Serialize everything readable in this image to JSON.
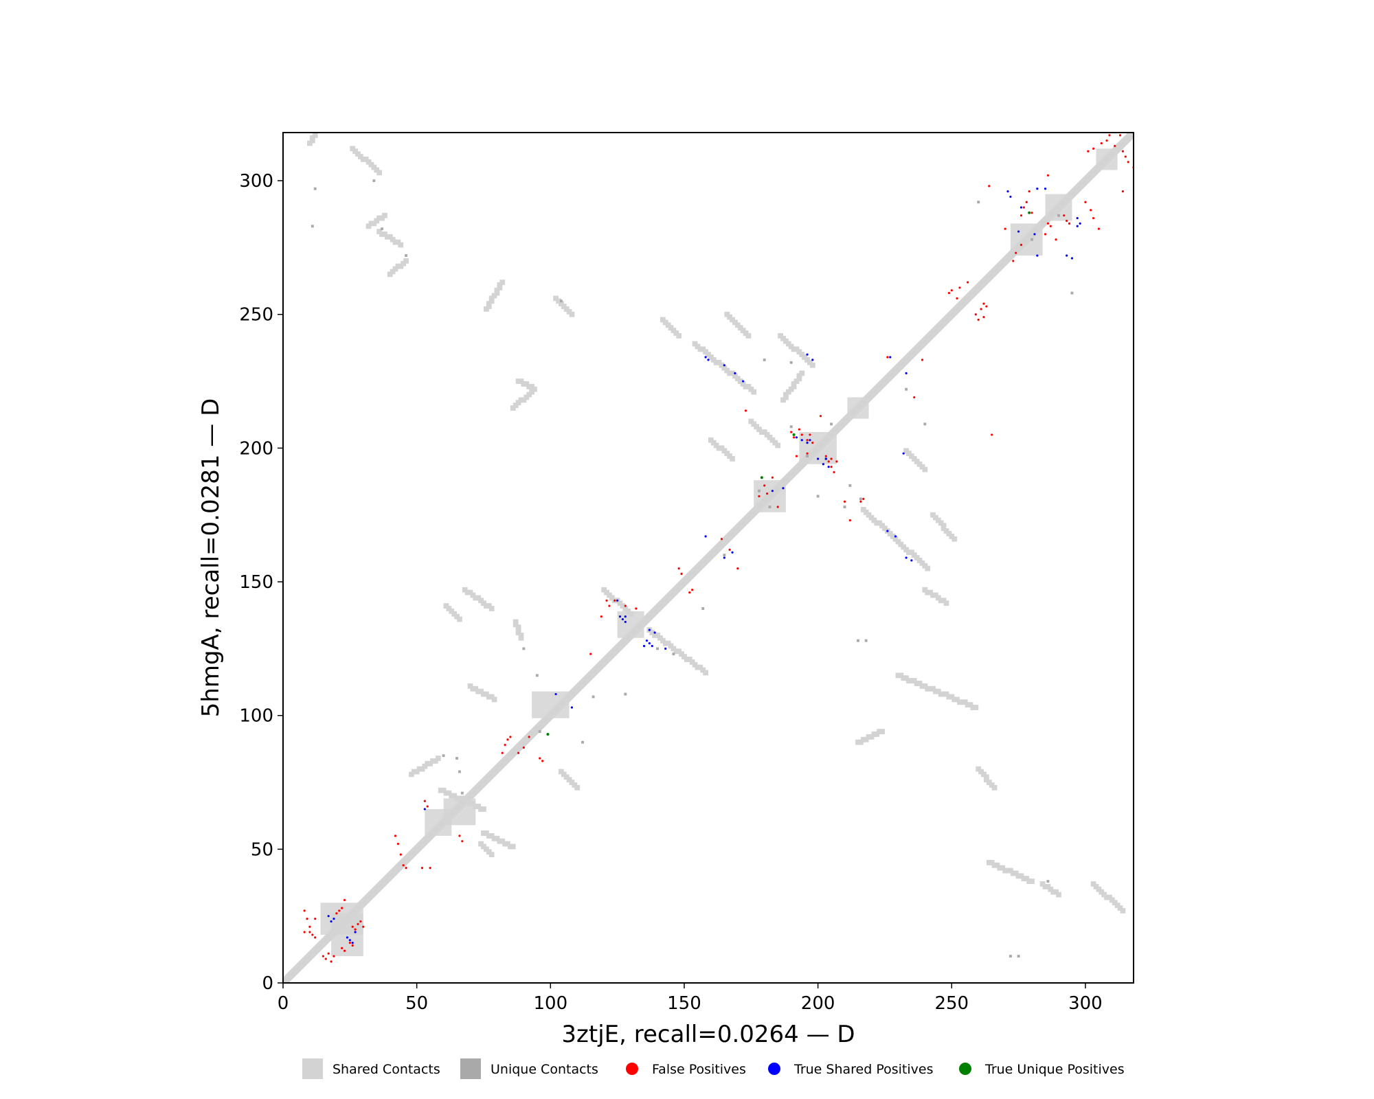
{
  "colors": {
    "shared": "#d3d3d3",
    "unique": "#a9a9a9",
    "false_pos": "#ff0000",
    "true_shared": "#0000ff",
    "true_unique": "#008000",
    "axis": "#000000"
  },
  "chart_data": {
    "type": "scatter",
    "title": "",
    "xlabel": "3ztjE, recall=0.0264 — D",
    "ylabel": "5hmgA, recall=0.0281 — D",
    "xlim": [
      0,
      318
    ],
    "ylim": [
      0,
      318
    ],
    "xticks": [
      0,
      50,
      100,
      150,
      200,
      250,
      300
    ],
    "yticks": [
      0,
      50,
      100,
      150,
      200,
      250,
      300
    ],
    "grid": false,
    "legend_position": "bottom",
    "legend": [
      {
        "key": "shared",
        "label": "Shared Contacts",
        "marker": "square"
      },
      {
        "key": "unique",
        "label": "Unique Contacts",
        "marker": "square"
      },
      {
        "key": "false_pos",
        "label": "False Positives",
        "marker": "circle"
      },
      {
        "key": "true_shared",
        "label": "True Shared Positives",
        "marker": "circle"
      },
      {
        "key": "true_unique",
        "label": "True Unique Positives",
        "marker": "circle"
      }
    ],
    "contact_diagonal": {
      "from": 0,
      "to": 318,
      "width": 3
    },
    "shared_contacts": [
      {
        "segment": [
          [
            12,
            317
          ],
          [
            10,
            314
          ]
        ]
      },
      {
        "segment": [
          [
            26,
            312
          ],
          [
            36,
            303
          ]
        ]
      },
      {
        "segment": [
          [
            32,
            283
          ],
          [
            38,
            287
          ]
        ]
      },
      {
        "segment": [
          [
            36,
            281
          ],
          [
            44,
            276
          ]
        ]
      },
      {
        "segment": [
          [
            40,
            265
          ],
          [
            46,
            270
          ]
        ]
      },
      {
        "segment": [
          [
            76,
            252
          ],
          [
            82,
            262
          ]
        ]
      },
      {
        "segment": [
          [
            102,
            256
          ],
          [
            108,
            250
          ]
        ]
      },
      {
        "segment": [
          [
            142,
            248
          ],
          [
            148,
            242
          ]
        ]
      },
      {
        "segment": [
          [
            166,
            250
          ],
          [
            174,
            242
          ]
        ]
      },
      {
        "segment": [
          [
            154,
            239
          ],
          [
            176,
            221
          ]
        ]
      },
      {
        "segment": [
          [
            186,
            242
          ],
          [
            198,
            231
          ]
        ]
      },
      {
        "segment": [
          [
            88,
            225
          ],
          [
            94,
            222
          ]
        ]
      },
      {
        "segment": [
          [
            86,
            215
          ],
          [
            93,
            221
          ]
        ]
      },
      {
        "segment": [
          [
            175,
            210
          ],
          [
            185,
            201
          ]
        ]
      },
      {
        "segment": [
          [
            233,
            199
          ],
          [
            240,
            192
          ]
        ]
      },
      {
        "segment": [
          [
            217,
            177
          ],
          [
            241,
            155
          ]
        ]
      },
      {
        "segment": [
          [
            243,
            175
          ],
          [
            251,
            166
          ]
        ]
      },
      {
        "segment": [
          [
            240,
            147
          ],
          [
            248,
            142
          ]
        ]
      },
      {
        "segment": [
          [
            120,
            147
          ],
          [
            130,
            138
          ]
        ]
      },
      {
        "segment": [
          [
            61,
            141
          ],
          [
            66,
            136
          ]
        ]
      },
      {
        "segment": [
          [
            87,
            135
          ],
          [
            89,
            129
          ]
        ]
      },
      {
        "segment": [
          [
            137,
            132
          ],
          [
            158,
            116
          ]
        ]
      },
      {
        "segment": [
          [
            230,
            115
          ],
          [
            259,
            103
          ]
        ]
      },
      {
        "segment": [
          [
            70,
            111
          ],
          [
            79,
            106
          ]
        ]
      },
      {
        "segment": [
          [
            215,
            90
          ],
          [
            224,
            94
          ]
        ]
      },
      {
        "segment": [
          [
            48,
            78
          ],
          [
            58,
            84
          ]
        ]
      },
      {
        "segment": [
          [
            104,
            79
          ],
          [
            110,
            73
          ]
        ]
      },
      {
        "segment": [
          [
            59,
            72
          ],
          [
            75,
            65
          ]
        ]
      },
      {
        "segment": [
          [
            75,
            56
          ],
          [
            86,
            51
          ]
        ]
      },
      {
        "segment": [
          [
            74,
            52
          ],
          [
            78,
            48
          ]
        ]
      },
      {
        "segment": [
          [
            260,
            80
          ],
          [
            266,
            73
          ]
        ]
      },
      {
        "segment": [
          [
            264,
            45
          ],
          [
            280,
            38
          ]
        ]
      },
      {
        "segment": [
          [
            284,
            37
          ],
          [
            290,
            33
          ]
        ]
      },
      {
        "segment": [
          [
            303,
            37
          ],
          [
            314,
            27
          ]
        ]
      },
      {
        "segment": [
          [
            68,
            147
          ],
          [
            78,
            140
          ]
        ]
      },
      {
        "segment": [
          [
            160,
            203
          ],
          [
            168,
            196
          ]
        ]
      },
      {
        "segment": [
          [
            187,
            218
          ],
          [
            194,
            228
          ]
        ]
      }
    ],
    "shared_blobs": [
      [
        22,
        24,
        16,
        12
      ],
      [
        24,
        18,
        12,
        16
      ],
      [
        58,
        60,
        10,
        10
      ],
      [
        66,
        64,
        12,
        10
      ],
      [
        100,
        104,
        14,
        10
      ],
      [
        130,
        134,
        10,
        10
      ],
      [
        182,
        182,
        12,
        12
      ],
      [
        200,
        200,
        14,
        12
      ],
      [
        215,
        215,
        8,
        8
      ],
      [
        278,
        278,
        12,
        12
      ],
      [
        290,
        290,
        10,
        10
      ],
      [
        308,
        308,
        8,
        8
      ]
    ],
    "unique_contacts": [
      [
        34,
        300
      ],
      [
        37,
        282
      ],
      [
        46,
        272
      ],
      [
        104,
        255
      ],
      [
        180,
        233
      ],
      [
        190,
        232
      ],
      [
        210,
        178
      ],
      [
        216,
        181
      ],
      [
        260,
        292
      ],
      [
        295,
        258
      ],
      [
        215,
        128
      ],
      [
        218,
        128
      ],
      [
        65,
        84
      ],
      [
        60,
        85
      ],
      [
        66,
        79
      ],
      [
        67,
        71
      ],
      [
        165,
        160
      ],
      [
        178,
        184
      ],
      [
        182,
        178
      ],
      [
        12,
        297
      ],
      [
        11,
        283
      ],
      [
        272,
        10
      ],
      [
        275,
        10
      ],
      [
        286,
        38
      ],
      [
        280,
        278
      ],
      [
        290,
        287
      ],
      [
        95,
        115
      ],
      [
        96,
        94
      ],
      [
        112,
        90
      ],
      [
        146,
        123
      ],
      [
        140,
        125
      ],
      [
        200,
        182
      ],
      [
        233,
        222
      ],
      [
        240,
        209
      ],
      [
        190,
        208
      ],
      [
        196,
        197
      ],
      [
        203,
        196
      ],
      [
        212,
        186
      ],
      [
        205,
        209
      ],
      [
        157,
        140
      ],
      [
        128,
        108
      ],
      [
        116,
        107
      ],
      [
        90,
        125
      ]
    ],
    "false_positives": [
      [
        8,
        27
      ],
      [
        9,
        24
      ],
      [
        10,
        21
      ],
      [
        10,
        19
      ],
      [
        11,
        18
      ],
      [
        12,
        17
      ],
      [
        8,
        19
      ],
      [
        12,
        24
      ],
      [
        15,
        10
      ],
      [
        16,
        9
      ],
      [
        17,
        11
      ],
      [
        18,
        8
      ],
      [
        19,
        10
      ],
      [
        20,
        26
      ],
      [
        21,
        27
      ],
      [
        22,
        28
      ],
      [
        23,
        31
      ],
      [
        26,
        21
      ],
      [
        27,
        20
      ],
      [
        28,
        22
      ],
      [
        29,
        23
      ],
      [
        30,
        21
      ],
      [
        25,
        15
      ],
      [
        26,
        14
      ],
      [
        22,
        13
      ],
      [
        23,
        12
      ],
      [
        42,
        55
      ],
      [
        43,
        52
      ],
      [
        44,
        48
      ],
      [
        45,
        44
      ],
      [
        46,
        43
      ],
      [
        52,
        43
      ],
      [
        55,
        43
      ],
      [
        53,
        68
      ],
      [
        54,
        66
      ],
      [
        66,
        55
      ],
      [
        67,
        53
      ],
      [
        82,
        86
      ],
      [
        83,
        89
      ],
      [
        84,
        91
      ],
      [
        85,
        92
      ],
      [
        88,
        86
      ],
      [
        90,
        88
      ],
      [
        92,
        92
      ],
      [
        96,
        84
      ],
      [
        97,
        83
      ],
      [
        115,
        123
      ],
      [
        119,
        137
      ],
      [
        121,
        143
      ],
      [
        122,
        141
      ],
      [
        124,
        143
      ],
      [
        128,
        141
      ],
      [
        132,
        140
      ],
      [
        148,
        155
      ],
      [
        149,
        153
      ],
      [
        152,
        146
      ],
      [
        153,
        147
      ],
      [
        164,
        166
      ],
      [
        167,
        162
      ],
      [
        170,
        155
      ],
      [
        178,
        182
      ],
      [
        180,
        186
      ],
      [
        183,
        189
      ],
      [
        190,
        206
      ],
      [
        191,
        204
      ],
      [
        193,
        207
      ],
      [
        194,
        205
      ],
      [
        196,
        203
      ],
      [
        197,
        205
      ],
      [
        198,
        202
      ],
      [
        201,
        212
      ],
      [
        203,
        197
      ],
      [
        204,
        195
      ],
      [
        205,
        193
      ],
      [
        206,
        191
      ],
      [
        205,
        196
      ],
      [
        207,
        195
      ],
      [
        210,
        180
      ],
      [
        217,
        181
      ],
      [
        212,
        173
      ],
      [
        249,
        258
      ],
      [
        250,
        259
      ],
      [
        252,
        256
      ],
      [
        253,
        260
      ],
      [
        256,
        262
      ],
      [
        259,
        250
      ],
      [
        261,
        252
      ],
      [
        262,
        254
      ],
      [
        263,
        253
      ],
      [
        260,
        248
      ],
      [
        262,
        249
      ],
      [
        276,
        287
      ],
      [
        277,
        290
      ],
      [
        278,
        292
      ],
      [
        279,
        296
      ],
      [
        280,
        288
      ],
      [
        285,
        280
      ],
      [
        286,
        284
      ],
      [
        287,
        283
      ],
      [
        289,
        278
      ],
      [
        292,
        287
      ],
      [
        293,
        285
      ],
      [
        294,
        284
      ],
      [
        300,
        292
      ],
      [
        302,
        289
      ],
      [
        303,
        286
      ],
      [
        305,
        282
      ],
      [
        301,
        311
      ],
      [
        303,
        312
      ],
      [
        306,
        314
      ],
      [
        308,
        315
      ],
      [
        309,
        317
      ],
      [
        311,
        313
      ],
      [
        313,
        317
      ],
      [
        314,
        311
      ],
      [
        315,
        309
      ],
      [
        316,
        307
      ],
      [
        314,
        296
      ],
      [
        318,
        305
      ],
      [
        216,
        180
      ],
      [
        185,
        178
      ],
      [
        181,
        183
      ],
      [
        173,
        214
      ],
      [
        226,
        234
      ],
      [
        236,
        219
      ],
      [
        265,
        205
      ],
      [
        286,
        302
      ],
      [
        239,
        233
      ],
      [
        273,
        270
      ],
      [
        274,
        273
      ],
      [
        270,
        282
      ],
      [
        276,
        276
      ],
      [
        264,
        298
      ],
      [
        196,
        198
      ],
      [
        192,
        197
      ]
    ],
    "true_shared": [
      [
        17,
        25
      ],
      [
        18,
        23
      ],
      [
        19,
        24
      ],
      [
        24,
        17
      ],
      [
        25,
        16
      ],
      [
        26,
        15
      ],
      [
        27,
        19
      ],
      [
        53,
        65
      ],
      [
        102,
        108
      ],
      [
        108,
        103
      ],
      [
        125,
        143
      ],
      [
        126,
        137
      ],
      [
        127,
        136
      ],
      [
        128,
        137
      ],
      [
        128,
        135
      ],
      [
        135,
        126
      ],
      [
        136,
        128
      ],
      [
        137,
        127
      ],
      [
        138,
        126
      ],
      [
        137,
        132
      ],
      [
        139,
        131
      ],
      [
        143,
        125
      ],
      [
        158,
        167
      ],
      [
        165,
        159
      ],
      [
        168,
        161
      ],
      [
        158,
        234
      ],
      [
        159,
        233
      ],
      [
        165,
        231
      ],
      [
        169,
        228
      ],
      [
        172,
        225
      ],
      [
        183,
        184
      ],
      [
        187,
        185
      ],
      [
        192,
        204
      ],
      [
        194,
        203
      ],
      [
        196,
        202
      ],
      [
        197,
        203
      ],
      [
        196,
        235
      ],
      [
        198,
        233
      ],
      [
        200,
        196
      ],
      [
        202,
        194
      ],
      [
        203,
        196
      ],
      [
        204,
        193
      ],
      [
        227,
        234
      ],
      [
        233,
        228
      ],
      [
        232,
        198
      ],
      [
        226,
        169
      ],
      [
        229,
        167
      ],
      [
        233,
        159
      ],
      [
        235,
        158
      ],
      [
        271,
        296
      ],
      [
        272,
        294
      ],
      [
        276,
        290
      ],
      [
        282,
        297
      ],
      [
        285,
        297
      ],
      [
        275,
        281
      ],
      [
        281,
        280
      ],
      [
        293,
        272
      ],
      [
        295,
        271
      ],
      [
        297,
        286
      ],
      [
        298,
        284
      ],
      [
        297,
        283
      ],
      [
        282,
        272
      ]
    ],
    "true_unique": [
      [
        99,
        93
      ],
      [
        179,
        189
      ],
      [
        191,
        205
      ],
      [
        279,
        288
      ]
    ]
  }
}
